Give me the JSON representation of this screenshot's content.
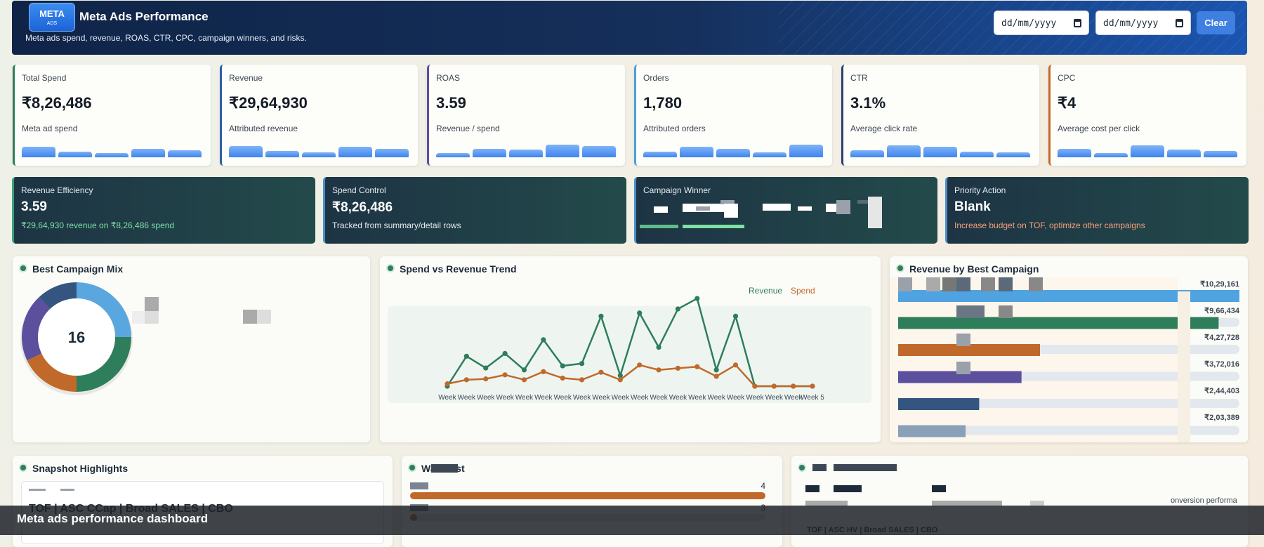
{
  "header": {
    "logo": "META",
    "logo_sub": "ADS",
    "title": "Meta Ads Performance",
    "subtitle": "Meta ads spend, revenue, ROAS, CTR, CPC, campaign winners, and risks.",
    "date_from": "dd/mm/yyyy",
    "date_to": "dd/mm/yyyy",
    "clear": "Clear"
  },
  "kpis": [
    {
      "label": "Total Spend",
      "value": "₹8,26,486",
      "note": "Meta ad spend",
      "color": "#2e7d5b",
      "trend": [
        13,
        7,
        5,
        11,
        9
      ]
    },
    {
      "label": "Revenue",
      "value": "₹29,64,930",
      "note": "Attributed revenue",
      "color": "#2f5fa8",
      "trend": [
        14,
        8,
        6,
        13,
        11
      ]
    },
    {
      "label": "ROAS",
      "value": "3.59",
      "note": "Revenue / spend",
      "color": "#5b4f9e",
      "trend": [
        5,
        11,
        10,
        16,
        14
      ]
    },
    {
      "label": "Orders",
      "value": "1,780",
      "note": "Attributed orders",
      "color": "#4d9fdc",
      "trend": [
        7,
        13,
        11,
        6,
        16
      ]
    },
    {
      "label": "CTR",
      "value": "3.1%",
      "note": "Average click rate",
      "color": "#2b3f70",
      "trend": [
        9,
        15,
        13,
        7,
        6
      ]
    },
    {
      "label": "CPC",
      "value": "₹4",
      "note": "Average cost per click",
      "color": "#c0692a",
      "trend": [
        11,
        5,
        15,
        10,
        8
      ]
    }
  ],
  "insights": [
    {
      "label": "Revenue Efficiency",
      "value": "3.59",
      "note": "₹29,64,930 revenue on ₹8,26,486 spend",
      "note_color": "#7ee0a3",
      "color": "#3fa07a"
    },
    {
      "label": "Spend Control",
      "value": "₹8,26,486",
      "note": "Tracked from summary/detail rows",
      "note_color": "#e4ecef",
      "color": "#4a8fc9"
    },
    {
      "label": "Campaign Winner",
      "color": "#4a8fc9"
    },
    {
      "label": "Priority Action",
      "value": "Blank",
      "note": "Increase budget on TOF, optimize other campaigns",
      "note_color": "#f7a07a",
      "color": "#4a8fc9"
    }
  ],
  "chart_data": [
    {
      "type": "pie",
      "title": "Best Campaign Mix",
      "center_label": "16",
      "values": [
        25,
        25,
        18,
        20,
        12
      ],
      "colors": [
        "#5aa7e0",
        "#2e7d5b",
        "#c0692a",
        "#5b4f9e",
        "#34557f"
      ]
    },
    {
      "type": "line",
      "title": "Spend vs Revenue Trend",
      "categories": [
        "Week",
        "Week",
        "Week",
        "Week",
        "Week",
        "Week",
        "Week",
        "Week",
        "Week",
        "Week",
        "Week",
        "Week",
        "Week",
        "Week",
        "Week",
        "Week",
        "Week",
        "Week",
        "Week",
        "Week 5"
      ],
      "series": [
        {
          "name": "Revenue",
          "color": "#2e7d5b",
          "values": [
            0,
            140000,
            85000,
            153000,
            76000,
            217000,
            95000,
            106000,
            327000,
            50000,
            342000,
            182000,
            361000,
            410000,
            76000,
            327000,
            0,
            0,
            0,
            0
          ]
        },
        {
          "name": "Spend",
          "color": "#c0692a",
          "values": [
            11000,
            30000,
            34000,
            53000,
            30000,
            68000,
            38000,
            30000,
            65000,
            30000,
            99000,
            76000,
            84000,
            91000,
            46000,
            99000,
            0,
            0,
            0,
            0
          ]
        }
      ],
      "ylim": [
        0,
        420000
      ],
      "legend": "top-right"
    },
    {
      "type": "bar",
      "orientation": "horizontal",
      "title": "Revenue by Best Campaign",
      "values": [
        1029161,
        966434,
        427728,
        372016,
        244403,
        203389
      ],
      "value_labels": [
        "₹10,29,161",
        "₹9,66,434",
        "₹4,27,728",
        "₹3,72,016",
        "₹2,44,403",
        "₹2,03,389"
      ],
      "colors": [
        "#4fa3e0",
        "#2e7d5b",
        "#c0692a",
        "#5b4f9e",
        "#34557f",
        "#8aa0b8"
      ],
      "xlim": [
        0,
        1029161
      ]
    }
  ],
  "snapshot": {
    "title": "Snapshot Highlights",
    "item": "TOF | ASC CCap | Broad SALES | CBO"
  },
  "watchlist": {
    "title": "Watchlist",
    "items": [
      {
        "value": 4
      },
      {
        "value": 3
      }
    ]
  },
  "performance": {
    "item": "TOF | ASC HV | Broad SALES | CBO",
    "note": "onversion performa"
  },
  "caption": "Meta ads performance dashboard"
}
